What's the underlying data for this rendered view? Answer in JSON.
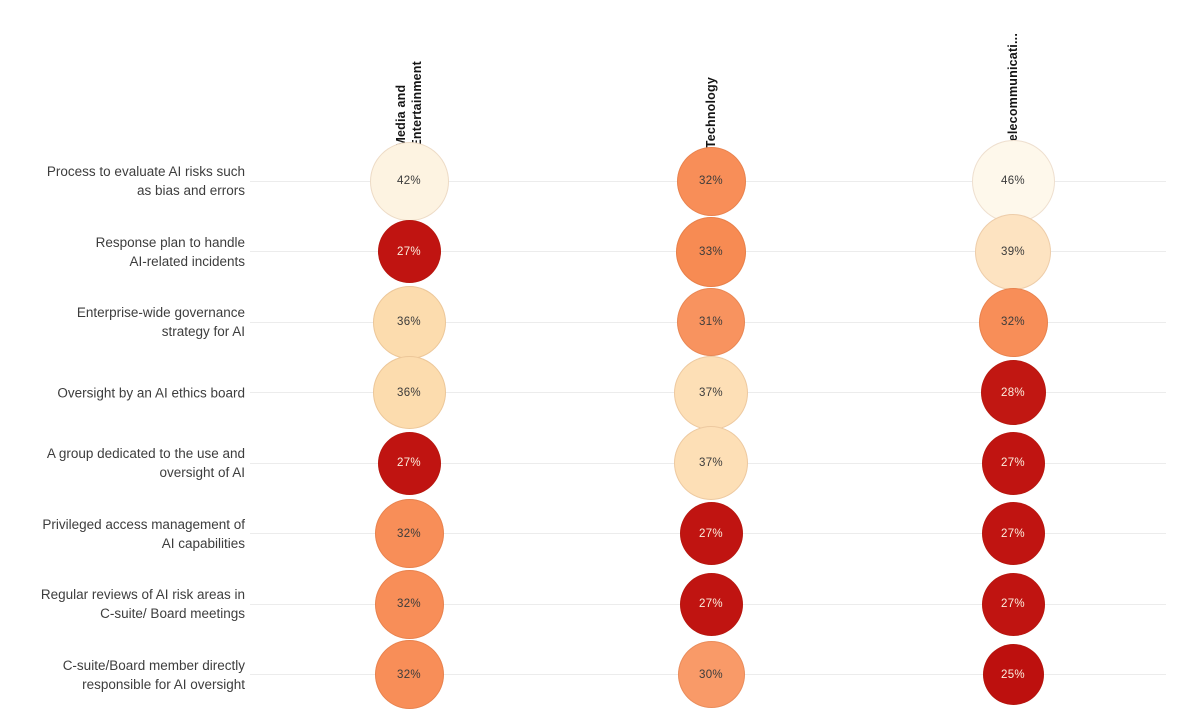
{
  "background": "#ffffff",
  "chart_data": {
    "type": "heatmap",
    "subtype": "bubble-matrix",
    "title": "",
    "value_unit": "%",
    "legend": "none",
    "grid": "horizontal light gray row lines",
    "bubble_size": "area proportional to value",
    "color_scale": {
      "description": "reversed OrRd: low % = dark red, high % = light cream",
      "low_color": "#bd100e",
      "mid_color": "#f88e58",
      "high_color": "#fef8eb"
    },
    "columns": [
      {
        "label": "Media and Entertainment",
        "label_display": "Media and\nEntertainment"
      },
      {
        "label": "Technology",
        "label_display": "Technology"
      },
      {
        "label": "Telecommunicati...",
        "label_display": "Telecommunicati..."
      }
    ],
    "series": [
      {
        "name": "Media and Entertainment",
        "values": [
          42,
          27,
          36,
          36,
          27,
          32,
          32,
          32
        ]
      },
      {
        "name": "Technology",
        "values": [
          32,
          33,
          31,
          37,
          37,
          27,
          27,
          30
        ]
      },
      {
        "name": "Telecommunicati...",
        "values": [
          46,
          39,
          32,
          28,
          27,
          27,
          27,
          25
        ]
      }
    ],
    "rows": [
      {
        "label": "Process to evaluate AI risks such as bias and errors",
        "label_display": "Process to evaluate AI risks such\nas bias and errors",
        "cells": [
          {
            "value": 42,
            "label": "42%",
            "color": "#fdf3e1",
            "text_color": "#3b3b3b"
          },
          {
            "value": 32,
            "label": "32%",
            "color": "#f88e58",
            "text_color": "#3b3b3b"
          },
          {
            "value": 46,
            "label": "46%",
            "color": "#fef8eb",
            "text_color": "#3b3b3b"
          }
        ]
      },
      {
        "label": "Response plan to handle AI-related incidents",
        "label_display": "Response plan to handle\nAI-related incidents",
        "cells": [
          {
            "value": 27,
            "label": "27%",
            "color": "#c01411",
            "text_color": "#fbeede"
          },
          {
            "value": 33,
            "label": "33%",
            "color": "#f78b53",
            "text_color": "#3b3b3b"
          },
          {
            "value": 39,
            "label": "39%",
            "color": "#fde3c1",
            "text_color": "#3b3b3b"
          }
        ]
      },
      {
        "label": "Enterprise-wide governance strategy for AI",
        "label_display": "Enterprise-wide governance\nstrategy for AI",
        "cells": [
          {
            "value": 36,
            "label": "36%",
            "color": "#fcdcae",
            "text_color": "#3b3b3b"
          },
          {
            "value": 31,
            "label": "31%",
            "color": "#f8935f",
            "text_color": "#3b3b3b"
          },
          {
            "value": 32,
            "label": "32%",
            "color": "#f88e58",
            "text_color": "#3b3b3b"
          }
        ]
      },
      {
        "label": "Oversight by an AI ethics board",
        "label_display": "Oversight by an AI ethics board",
        "cells": [
          {
            "value": 36,
            "label": "36%",
            "color": "#fcdcae",
            "text_color": "#3b3b3b"
          },
          {
            "value": 37,
            "label": "37%",
            "color": "#fddfb6",
            "text_color": "#3b3b3b"
          },
          {
            "value": 28,
            "label": "28%",
            "color": "#c11712",
            "text_color": "#fbeede"
          }
        ]
      },
      {
        "label": "A group dedicated to the use and oversight of AI",
        "label_display": "A group dedicated to the use and\noversight of AI",
        "cells": [
          {
            "value": 27,
            "label": "27%",
            "color": "#c01411",
            "text_color": "#fbeede"
          },
          {
            "value": 37,
            "label": "37%",
            "color": "#fddfb6",
            "text_color": "#3b3b3b"
          },
          {
            "value": 27,
            "label": "27%",
            "color": "#c01411",
            "text_color": "#fbeede"
          }
        ]
      },
      {
        "label": "Privileged access management of AI capabilities",
        "label_display": "Privileged access management of\nAI capabilities",
        "cells": [
          {
            "value": 32,
            "label": "32%",
            "color": "#f88e58",
            "text_color": "#3b3b3b"
          },
          {
            "value": 27,
            "label": "27%",
            "color": "#c01411",
            "text_color": "#fbeede"
          },
          {
            "value": 27,
            "label": "27%",
            "color": "#c01411",
            "text_color": "#fbeede"
          }
        ]
      },
      {
        "label": "Regular reviews of AI risk areas in C-suite/ Board meetings",
        "label_display": "Regular reviews of AI risk areas in\nC-suite/ Board meetings",
        "cells": [
          {
            "value": 32,
            "label": "32%",
            "color": "#f88e58",
            "text_color": "#3b3b3b"
          },
          {
            "value": 27,
            "label": "27%",
            "color": "#c01411",
            "text_color": "#fbeede"
          },
          {
            "value": 27,
            "label": "27%",
            "color": "#c01411",
            "text_color": "#fbeede"
          }
        ]
      },
      {
        "label": "C-suite/Board member directly responsible for AI oversight",
        "label_display": "C-suite/Board member directly\nresponsible for AI oversight",
        "cells": [
          {
            "value": 32,
            "label": "32%",
            "color": "#f88e58",
            "text_color": "#3b3b3b"
          },
          {
            "value": 30,
            "label": "30%",
            "color": "#f99a68",
            "text_color": "#3b3b3b"
          },
          {
            "value": 25,
            "label": "25%",
            "color": "#bd100e",
            "text_color": "#fbeede"
          }
        ]
      }
    ]
  }
}
